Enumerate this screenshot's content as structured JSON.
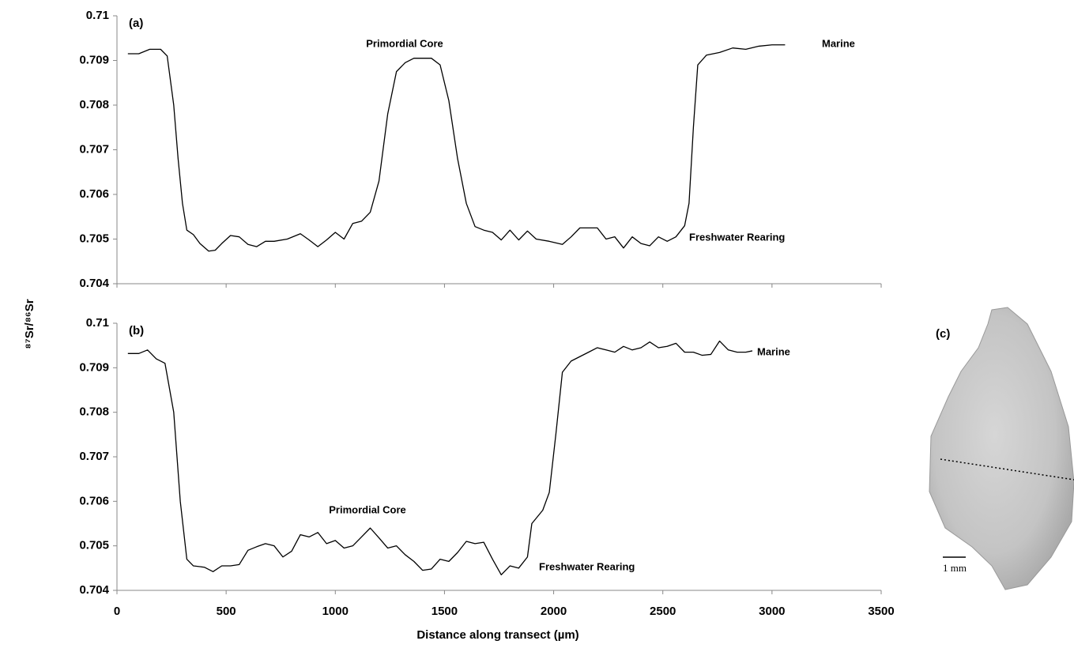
{
  "chart_data": [
    {
      "type": "line",
      "title": "(a)",
      "x": [
        50,
        100,
        150,
        200,
        230,
        260,
        280,
        300,
        320,
        350,
        380,
        420,
        450,
        480,
        520,
        560,
        600,
        640,
        680,
        720,
        780,
        840,
        880,
        920,
        960,
        1000,
        1040,
        1080,
        1120,
        1160,
        1200,
        1240,
        1280,
        1320,
        1360,
        1400,
        1440,
        1480,
        1520,
        1560,
        1600,
        1640,
        1680,
        1720,
        1760,
        1800,
        1840,
        1880,
        1920,
        1980,
        2040,
        2080,
        2120,
        2160,
        2200,
        2240,
        2280,
        2320,
        2360,
        2400,
        2440,
        2480,
        2520,
        2560,
        2600,
        2620,
        2640,
        2660,
        2700,
        2760,
        2820,
        2880,
        2940,
        3000,
        3060
      ],
      "series": [
        {
          "color": "#000000",
          "values": [
            0.70915,
            0.70915,
            0.70925,
            0.70925,
            0.7091,
            0.708,
            0.7068,
            0.7058,
            0.7052,
            0.7051,
            0.7049,
            0.70473,
            0.70475,
            0.7049,
            0.70508,
            0.70505,
            0.70488,
            0.70483,
            0.70495,
            0.70495,
            0.705,
            0.70512,
            0.70498,
            0.70483,
            0.70498,
            0.70515,
            0.705,
            0.70535,
            0.7054,
            0.7056,
            0.7063,
            0.7078,
            0.70875,
            0.70895,
            0.70905,
            0.70905,
            0.70905,
            0.7089,
            0.7081,
            0.7068,
            0.7058,
            0.70528,
            0.7052,
            0.70515,
            0.70498,
            0.7052,
            0.70498,
            0.70518,
            0.705,
            0.70495,
            0.70488,
            0.70505,
            0.70525,
            0.70525,
            0.70525,
            0.705,
            0.70505,
            0.7048,
            0.70505,
            0.7049,
            0.70485,
            0.70505,
            0.70495,
            0.70505,
            0.7053,
            0.7058,
            0.7075,
            0.7089,
            0.70912,
            0.70918,
            0.70928,
            0.70925,
            0.70932,
            0.70935,
            0.70935
          ]
        }
      ],
      "annotations": [
        "Primordial Core",
        "Marine",
        "Freshwater Rearing"
      ],
      "xlim": [
        0,
        3500
      ],
      "xticks": [
        0,
        500,
        1000,
        1500,
        2000,
        2500,
        3000,
        3500
      ],
      "ylim": [
        0.704,
        0.71
      ],
      "yticks": [
        0.704,
        0.705,
        0.706,
        0.707,
        0.708,
        0.709,
        0.71
      ]
    },
    {
      "type": "line",
      "title": "(b)",
      "x": [
        50,
        100,
        140,
        180,
        220,
        260,
        290,
        320,
        350,
        400,
        440,
        480,
        520,
        560,
        600,
        640,
        680,
        720,
        760,
        800,
        840,
        880,
        920,
        960,
        1000,
        1040,
        1080,
        1120,
        1160,
        1200,
        1240,
        1280,
        1320,
        1360,
        1400,
        1440,
        1480,
        1520,
        1560,
        1600,
        1640,
        1680,
        1720,
        1760,
        1800,
        1840,
        1880,
        1900,
        1950,
        1980,
        2010,
        2040,
        2080,
        2120,
        2160,
        2200,
        2240,
        2280,
        2320,
        2360,
        2400,
        2440,
        2480,
        2520,
        2560,
        2600,
        2640,
        2680,
        2720,
        2760,
        2800,
        2840,
        2880,
        2910
      ],
      "series": [
        {
          "color": "#000000",
          "values": [
            0.70932,
            0.70932,
            0.7094,
            0.7092,
            0.7091,
            0.708,
            0.706,
            0.7047,
            0.70455,
            0.70452,
            0.70442,
            0.70455,
            0.70455,
            0.70458,
            0.7049,
            0.70498,
            0.70505,
            0.705,
            0.70475,
            0.70488,
            0.70525,
            0.7052,
            0.7053,
            0.70505,
            0.70512,
            0.70495,
            0.705,
            0.7052,
            0.7054,
            0.70518,
            0.70495,
            0.705,
            0.7048,
            0.70465,
            0.70445,
            0.70448,
            0.7047,
            0.70465,
            0.70485,
            0.7051,
            0.70505,
            0.70508,
            0.7047,
            0.70435,
            0.70455,
            0.7045,
            0.70475,
            0.7055,
            0.7058,
            0.7062,
            0.7075,
            0.7089,
            0.70915,
            0.70925,
            0.70935,
            0.70945,
            0.7094,
            0.70935,
            0.70948,
            0.7094,
            0.70945,
            0.70958,
            0.70945,
            0.70948,
            0.70955,
            0.70935,
            0.70935,
            0.70928,
            0.7093,
            0.7096,
            0.7094,
            0.70935,
            0.70935,
            0.70938
          ]
        }
      ],
      "annotations": [
        "Marine",
        "Primordial Core",
        "Freshwater Rearing"
      ],
      "xlim": [
        0,
        3500
      ],
      "xticks": [
        0,
        500,
        1000,
        1500,
        2000,
        2500,
        3000,
        3500
      ],
      "ylim": [
        0.704,
        0.71
      ],
      "yticks": [
        0.704,
        0.705,
        0.706,
        0.707,
        0.708,
        0.709,
        0.71
      ]
    }
  ],
  "axis_labels": {
    "x": "Distance along transect (µm)",
    "y": "⁸⁷Sr/⁸⁶Sr"
  },
  "image": {
    "label": "(c)",
    "scale": "1 mm"
  }
}
